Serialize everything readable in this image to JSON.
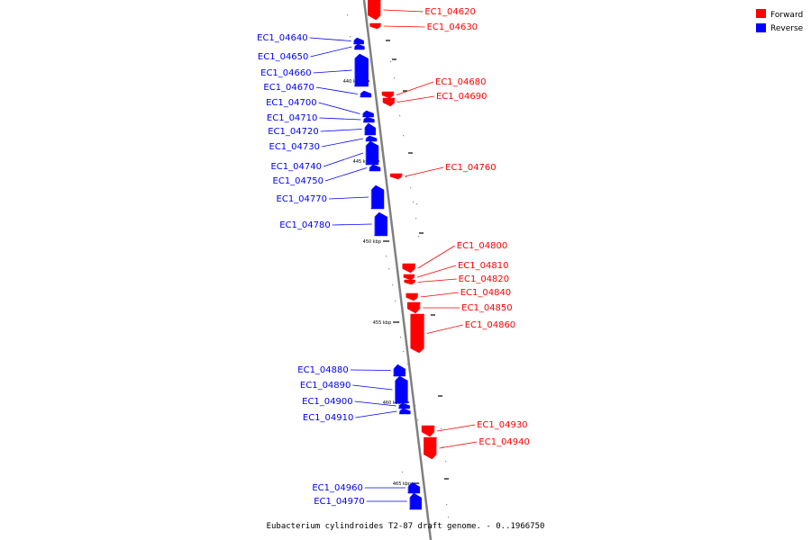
{
  "caption": "Eubacterium cylindroides T2-87 draft genome. - 0..1966750",
  "legend": [
    {
      "label": "Forward",
      "color": "#ff0000"
    },
    {
      "label": "Reverse",
      "color": "#0000ff"
    }
  ],
  "colors": {
    "forward": "#ff0000",
    "reverse": "#0000ff",
    "axis": "#808080"
  },
  "ticks": [
    {
      "label": "440 kbp",
      "pos": 440
    },
    {
      "label": "445 kbp",
      "pos": 445
    },
    {
      "label": "450 kbp",
      "pos": 450
    },
    {
      "label": "455 kbp",
      "pos": 455
    },
    {
      "label": "460 kbp",
      "pos": 460
    },
    {
      "label": "465 kbp",
      "pos": 465
    }
  ],
  "genes": [
    {
      "name": "EC1_04620",
      "strand": "forward"
    },
    {
      "name": "EC1_04630",
      "strand": "forward"
    },
    {
      "name": "EC1_04640",
      "strand": "reverse"
    },
    {
      "name": "EC1_04650",
      "strand": "reverse"
    },
    {
      "name": "EC1_04660",
      "strand": "reverse"
    },
    {
      "name": "EC1_04670",
      "strand": "reverse"
    },
    {
      "name": "EC1_04680",
      "strand": "forward"
    },
    {
      "name": "EC1_04690",
      "strand": "forward"
    },
    {
      "name": "EC1_04700",
      "strand": "reverse"
    },
    {
      "name": "EC1_04710",
      "strand": "reverse"
    },
    {
      "name": "EC1_04720",
      "strand": "reverse"
    },
    {
      "name": "EC1_04730",
      "strand": "reverse"
    },
    {
      "name": "EC1_04740",
      "strand": "reverse"
    },
    {
      "name": "EC1_04750",
      "strand": "reverse"
    },
    {
      "name": "EC1_04760",
      "strand": "forward"
    },
    {
      "name": "EC1_04770",
      "strand": "reverse"
    },
    {
      "name": "EC1_04780",
      "strand": "reverse"
    },
    {
      "name": "EC1_04800",
      "strand": "forward"
    },
    {
      "name": "EC1_04810",
      "strand": "forward"
    },
    {
      "name": "EC1_04820",
      "strand": "forward"
    },
    {
      "name": "EC1_04840",
      "strand": "forward"
    },
    {
      "name": "EC1_04850",
      "strand": "forward"
    },
    {
      "name": "EC1_04860",
      "strand": "forward"
    },
    {
      "name": "EC1_04880",
      "strand": "reverse"
    },
    {
      "name": "EC1_04890",
      "strand": "reverse"
    },
    {
      "name": "EC1_04900",
      "strand": "reverse"
    },
    {
      "name": "EC1_04910",
      "strand": "reverse"
    },
    {
      "name": "EC1_04930",
      "strand": "forward"
    },
    {
      "name": "EC1_04940",
      "strand": "forward"
    },
    {
      "name": "EC1_04960",
      "strand": "reverse"
    },
    {
      "name": "EC1_04970",
      "strand": "reverse"
    }
  ]
}
